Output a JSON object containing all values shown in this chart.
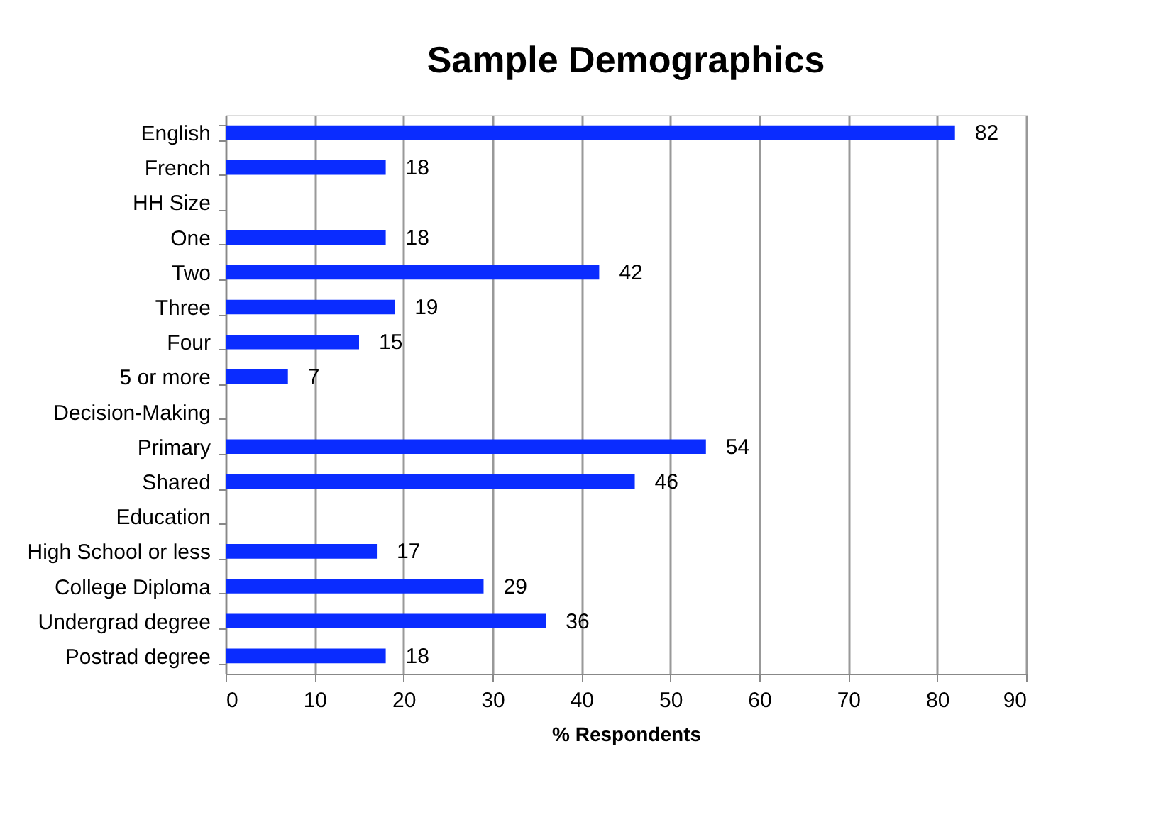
{
  "chart_data": {
    "type": "bar",
    "orientation": "horizontal",
    "title": "Sample Demographics",
    "xlabel": "% Respondents",
    "categories": [
      "English",
      "French",
      "HH Size",
      "One",
      "Two",
      "Three",
      "Four",
      "5 or more",
      "Decision-Making",
      "Primary",
      "Shared",
      "Education",
      "High School or less",
      "College Diploma",
      "Undergrad degree",
      "Postrad degree"
    ],
    "values": [
      82,
      18,
      null,
      18,
      42,
      19,
      15,
      7,
      null,
      54,
      46,
      null,
      17,
      29,
      36,
      18
    ],
    "color": "#0a2cff",
    "xlim": [
      0,
      90
    ],
    "xticks": [
      0,
      10,
      20,
      30,
      40,
      50,
      60,
      70,
      80,
      90
    ],
    "grid": "x",
    "data_labels": true
  }
}
